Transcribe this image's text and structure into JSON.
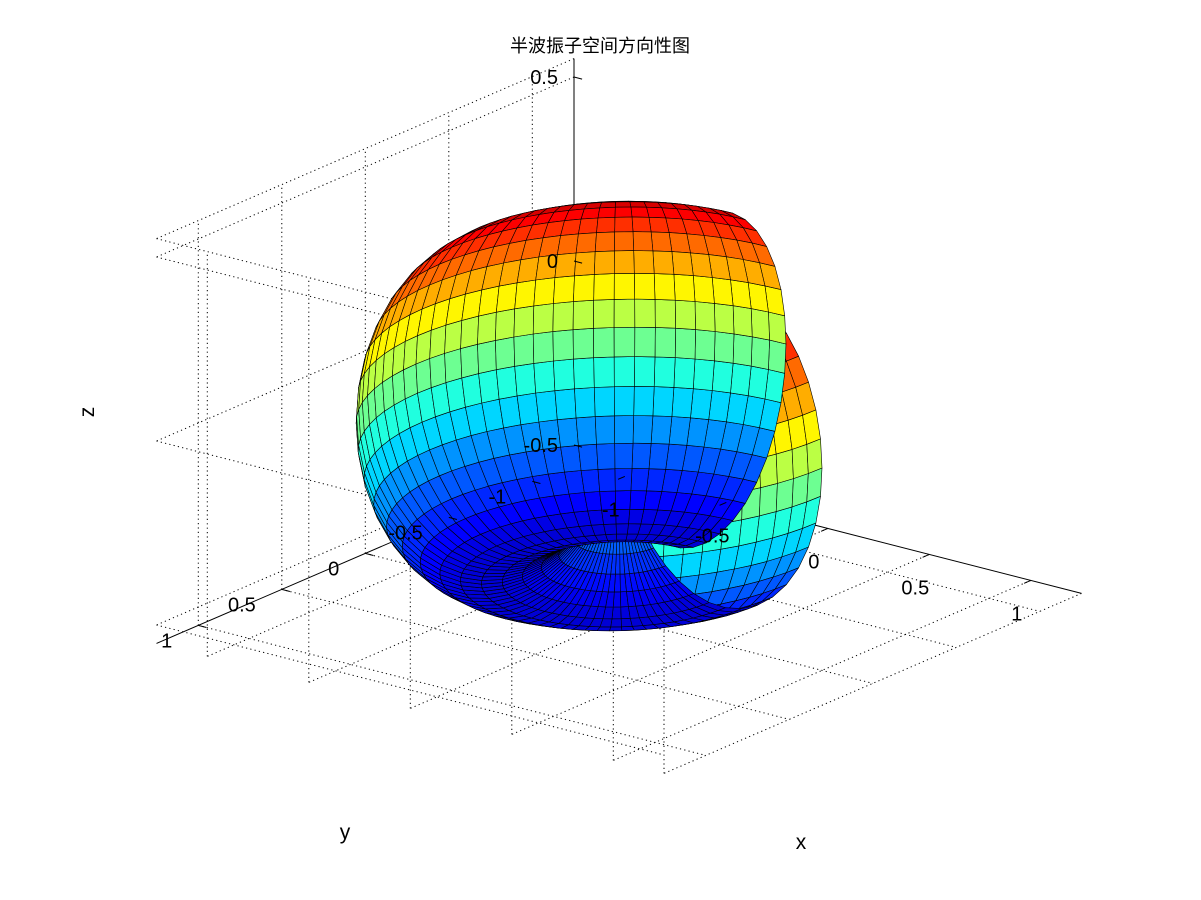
{
  "chart_data": {
    "type": "surface",
    "title": "半波振子空间方向性图",
    "xlabel": "x",
    "ylabel": "y",
    "zlabel": "z",
    "xlim": [
      -1.25,
      1.25
    ],
    "ylim": [
      -1.25,
      1.25
    ],
    "zlim": [
      -0.55,
      0.55
    ],
    "xticks": [
      -1,
      -0.5,
      0,
      0.5,
      1
    ],
    "yticks": [
      -1,
      -0.5,
      0,
      0.5,
      1
    ],
    "zticks": [
      -0.5,
      0,
      0.5
    ],
    "xtick_labels": [
      "-1",
      "-0.5",
      "0",
      "0.5",
      "1"
    ],
    "ytick_labels": [
      "-1",
      "-0.5",
      "0",
      "0.5",
      "1"
    ],
    "ztick_labels": [
      "-0.5",
      "0",
      "0.5"
    ],
    "grid": true,
    "box": true,
    "colormap": "jet",
    "surface": {
      "radius_function": "|cos(pi/2*cos(theta))/sin(theta)|",
      "theta_range": [
        0,
        180
      ],
      "phi_range": [
        0,
        270
      ],
      "theta_steps": 40,
      "phi_steps": 60
    }
  }
}
